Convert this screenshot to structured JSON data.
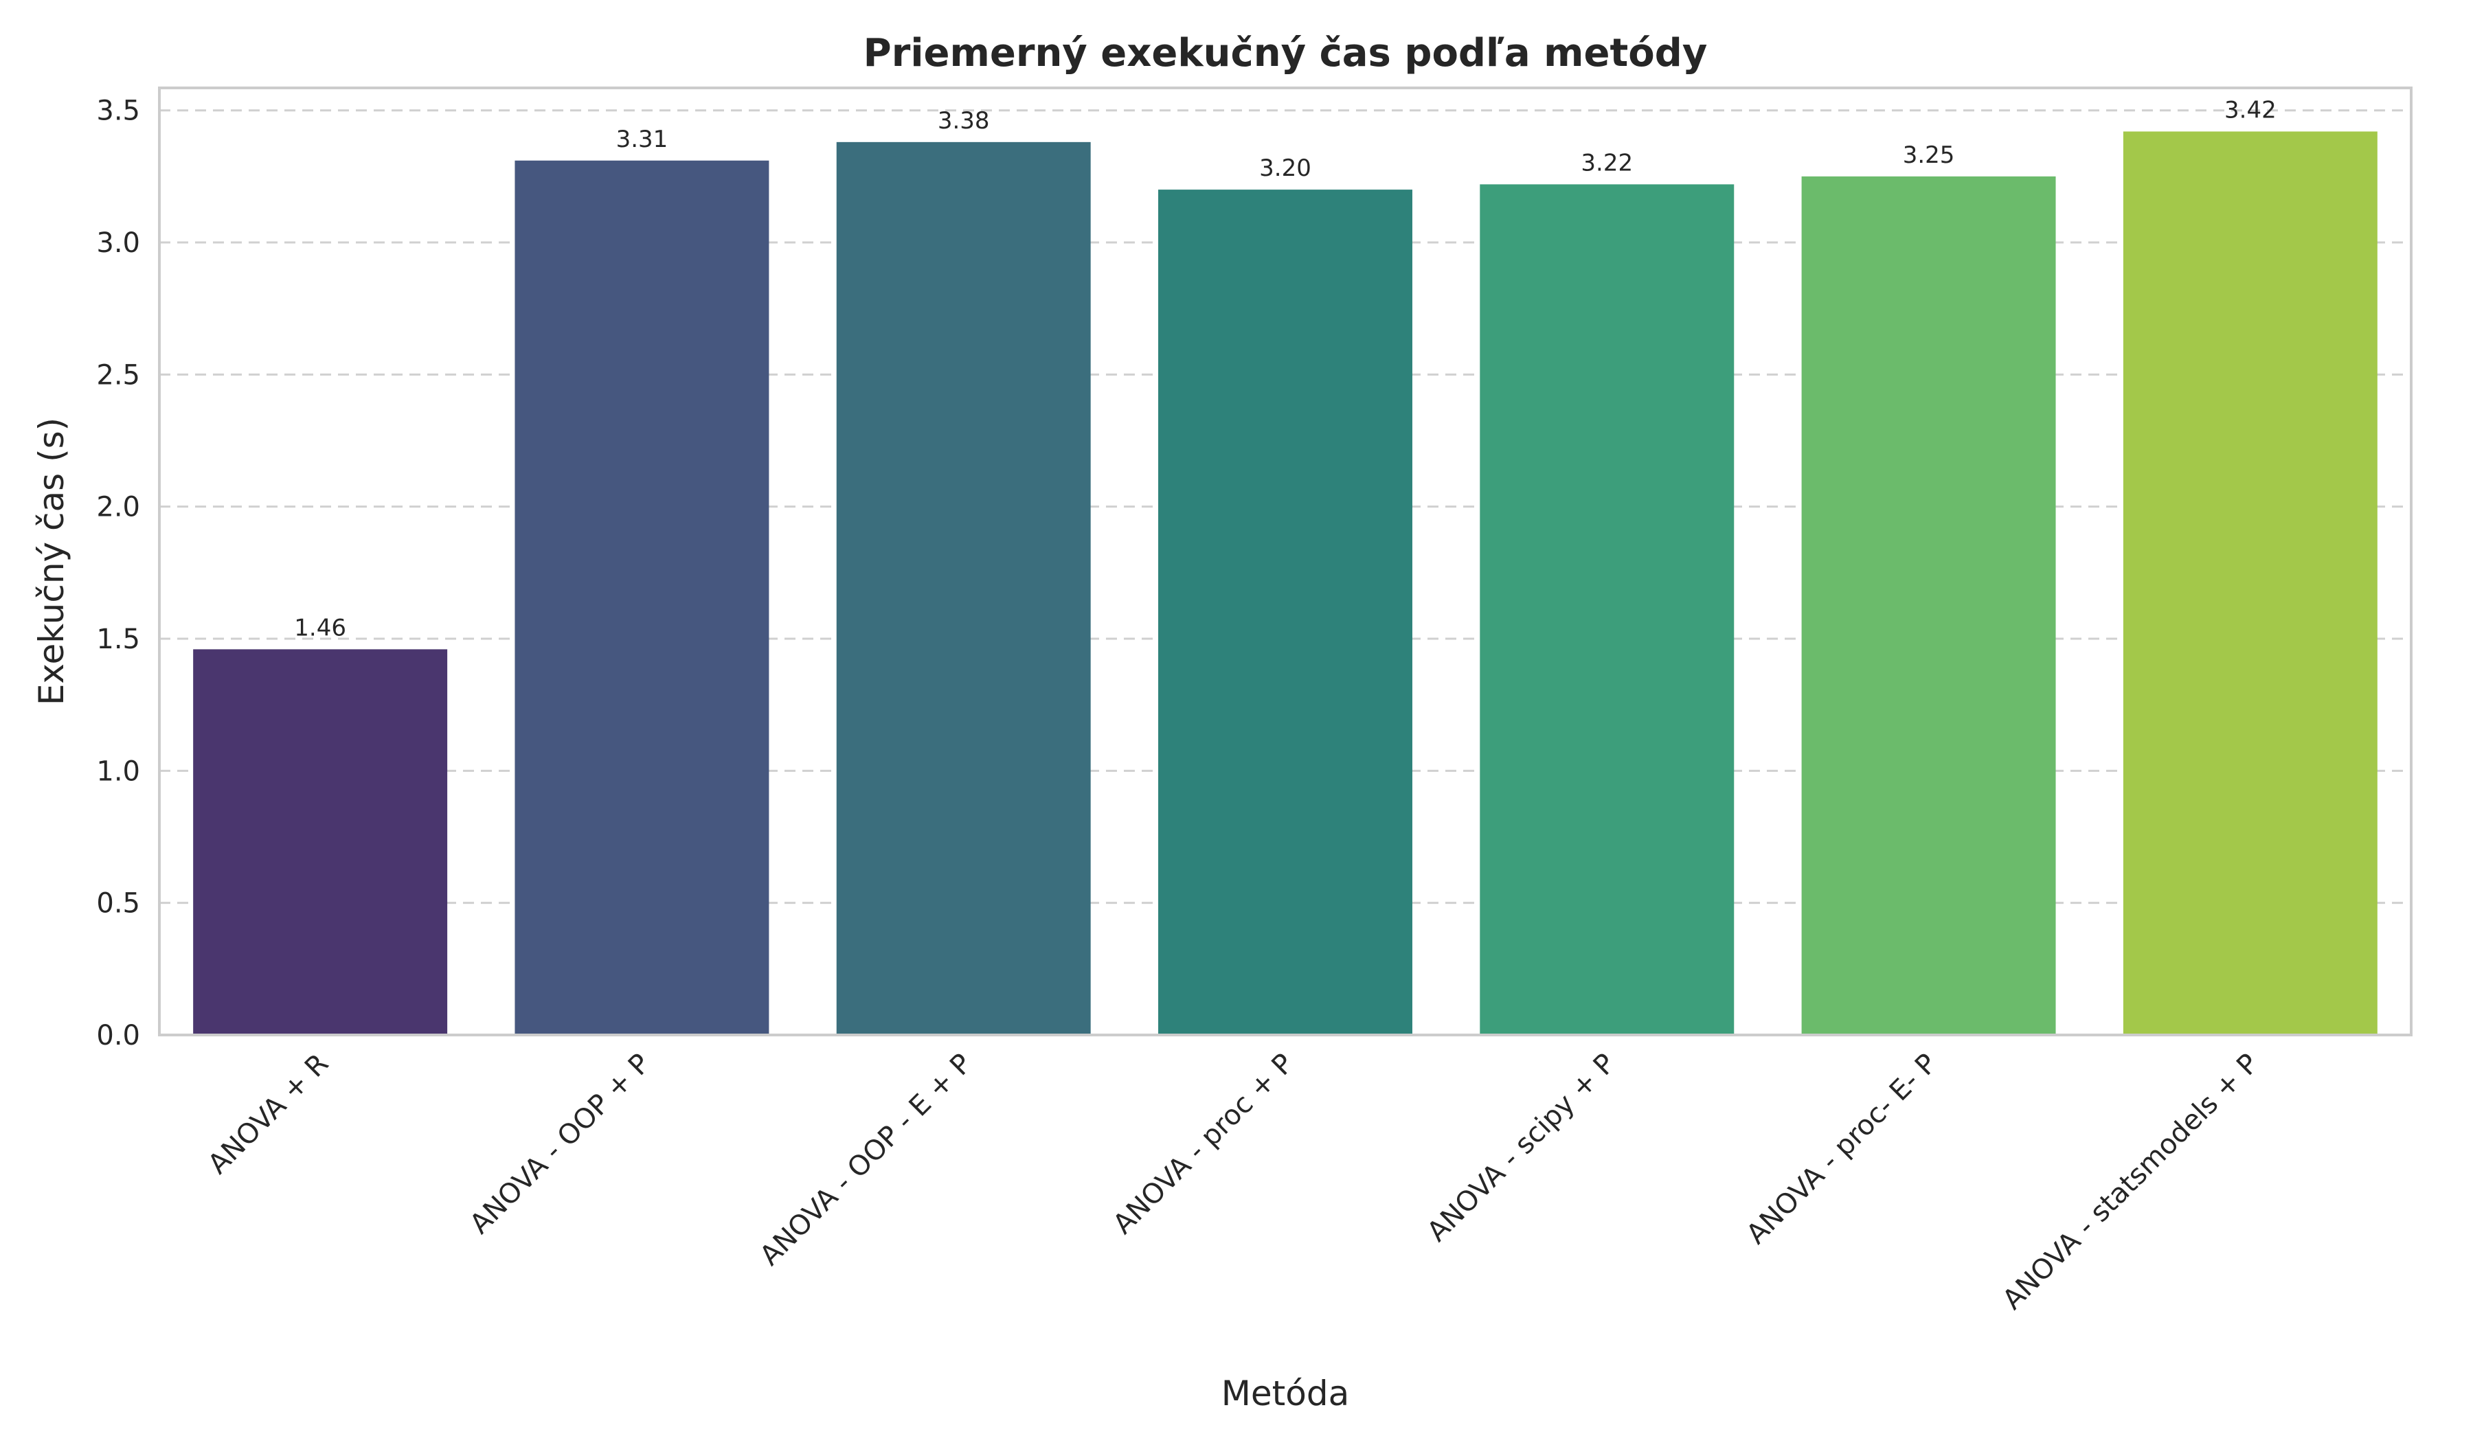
{
  "chart_data": {
    "type": "bar",
    "title": "Priemerný exekučný čas podľa metódy",
    "xlabel": "Metóda",
    "ylabel": "Exekučný čas (s)",
    "categories": [
      "ANOVA + R",
      "ANOVA - OOP + P",
      "ANOVA - OOP - E + P",
      "ANOVA - proc + P",
      "ANOVA - scipy + P",
      "ANOVA - proc- E- P",
      "ANOVA - statsmodels + P"
    ],
    "values": [
      1.46,
      3.31,
      3.38,
      3.2,
      3.22,
      3.25,
      3.42
    ],
    "value_labels": [
      "1.46",
      "3.31",
      "3.38",
      "3.20",
      "3.22",
      "3.25",
      "3.42"
    ],
    "colors": [
      "#4a366e",
      "#46577f",
      "#3b6e7d",
      "#2e827a",
      "#3d9e7b",
      "#6bbb6b",
      "#a3c84a"
    ],
    "ylim": [
      0,
      3.5
    ],
    "yticks": [
      0.0,
      0.5,
      1.0,
      1.5,
      2.0,
      2.5,
      3.0,
      3.5
    ],
    "ytick_labels": [
      "0.0",
      "0.5",
      "1.0",
      "1.5",
      "2.0",
      "2.5",
      "3.0",
      "3.5"
    ],
    "grid": true,
    "legend": false
  }
}
